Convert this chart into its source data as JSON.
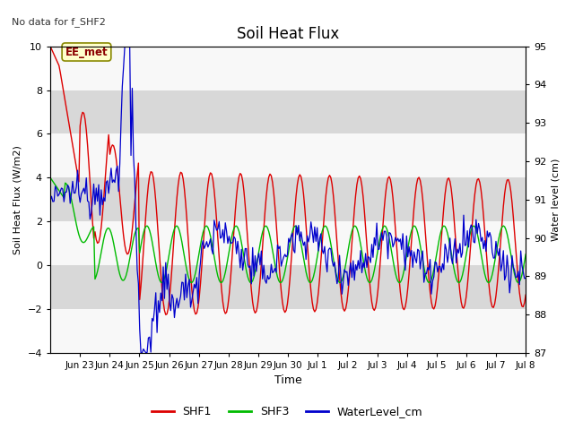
{
  "title": "Soil Heat Flux",
  "subtitle": "No data for f_SHF2",
  "xlabel": "Time",
  "ylabel_left": "Soil Heat Flux (W/m2)",
  "ylabel_right": "Water level (cm)",
  "ylim_left": [
    -4,
    10
  ],
  "ylim_right": [
    87.0,
    95.0
  ],
  "yticks_left": [
    -4,
    -2,
    0,
    2,
    4,
    6,
    8,
    10
  ],
  "yticks_right": [
    87.0,
    88.0,
    89.0,
    90.0,
    91.0,
    92.0,
    93.0,
    94.0,
    95.0
  ],
  "background_color": "#ffffff",
  "plot_bg_color": "#e0e0e0",
  "shf1_color": "#dd0000",
  "shf3_color": "#00bb00",
  "water_color": "#0000cc",
  "annotation_text": "EE_met",
  "annotation_bg": "#ffffcc",
  "annotation_border": "#888800",
  "legend_colors": [
    "#dd0000",
    "#00bb00",
    "#0000cc"
  ],
  "legend_labels": [
    "SHF1",
    "SHF3",
    "WaterLevel_cm"
  ],
  "tick_labels": [
    "Jun 23",
    "Jun 24",
    "Jun 25",
    "Jun 26",
    "Jun 27",
    "Jun 28",
    "Jun 29",
    "Jun 30",
    "Jul 1",
    "Jul 2",
    "Jul 3",
    "Jul 4",
    "Jul 5",
    "Jul 6",
    "Jul 7",
    "Jul 8"
  ]
}
